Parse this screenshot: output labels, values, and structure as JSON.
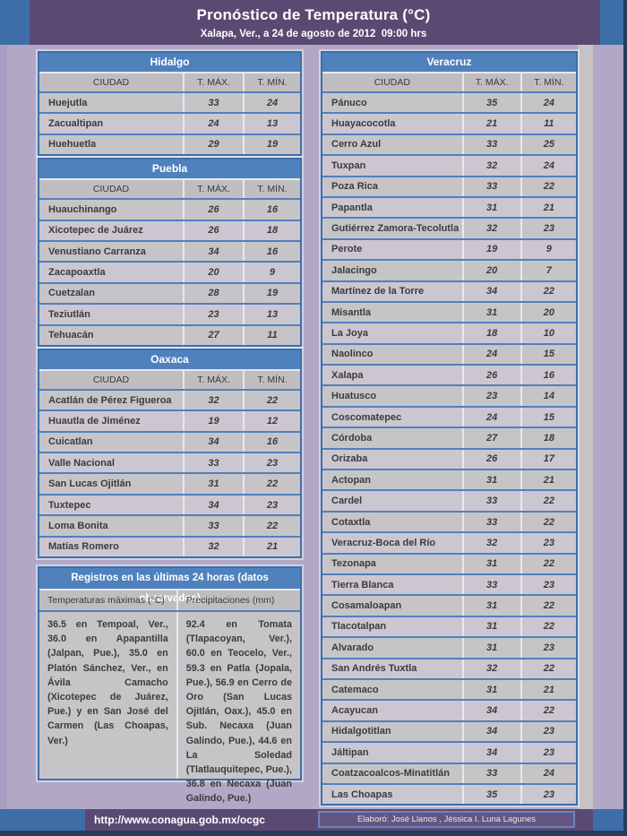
{
  "header": {
    "title": "Pronóstico de Temperatura (°C)",
    "subtitle": "Xalapa, Ver., a 24 de agosto de 2012  09:00 hrs"
  },
  "columns": {
    "city": "CIUDAD",
    "tmax": "T. MÁX.",
    "tmin": "T. MÍN."
  },
  "state_tables": {
    "left": [
      {
        "state": "Hidalgo",
        "rows": [
          [
            "Huejutla",
            33,
            24
          ],
          [
            "Zacualtipan",
            24,
            13
          ],
          [
            "Huehuetla",
            29,
            19
          ]
        ]
      },
      {
        "state": "Puebla",
        "rows": [
          [
            "Huauchinango",
            26,
            16
          ],
          [
            "Xicotepec de Juárez",
            26,
            18
          ],
          [
            "Venustiano Carranza",
            34,
            16
          ],
          [
            "Zacapoaxtla",
            20,
            9
          ],
          [
            "Cuetzalan",
            28,
            19
          ],
          [
            "Teziutlán",
            23,
            13
          ],
          [
            "Tehuacán",
            27,
            11
          ]
        ]
      },
      {
        "state": "Oaxaca",
        "rows": [
          [
            "Acatlán de Pérez Figueroa",
            32,
            22
          ],
          [
            "Huautla de Jiménez",
            19,
            12
          ],
          [
            "Cuicatlan",
            34,
            16
          ],
          [
            "Valle Nacional",
            33,
            23
          ],
          [
            "San Lucas Ojitlán",
            31,
            22
          ],
          [
            "Tuxtepec",
            34,
            23
          ],
          [
            "Loma Bonita",
            33,
            22
          ],
          [
            "Matías Romero",
            32,
            21
          ]
        ]
      }
    ],
    "right": [
      {
        "state": "Veracruz",
        "rows": [
          [
            "Pánuco",
            35,
            24
          ],
          [
            "Huayacocotla",
            21,
            11
          ],
          [
            "Cerro Azul",
            33,
            25
          ],
          [
            "Tuxpan",
            32,
            24
          ],
          [
            "Poza Rica",
            33,
            22
          ],
          [
            "Papantla",
            31,
            21
          ],
          [
            "Gutiérrez Zamora-Tecolutla",
            32,
            23
          ],
          [
            "Perote",
            19,
            9
          ],
          [
            "Jalacingo",
            20,
            7
          ],
          [
            "Martínez de la Torre",
            34,
            22
          ],
          [
            "Misantla",
            31,
            20
          ],
          [
            "La Joya",
            18,
            10
          ],
          [
            "Naolinco",
            24,
            15
          ],
          [
            "Xalapa",
            26,
            16
          ],
          [
            "Huatusco",
            23,
            14
          ],
          [
            "Coscomatepec",
            24,
            15
          ],
          [
            "Córdoba",
            27,
            18
          ],
          [
            "Orizaba",
            26,
            17
          ],
          [
            "Actopan",
            31,
            21
          ],
          [
            "Cardel",
            33,
            22
          ],
          [
            "Cotaxtla",
            33,
            22
          ],
          [
            "Veracruz-Boca del Río",
            32,
            23
          ],
          [
            "Tezonapa",
            31,
            22
          ],
          [
            "Tierra Blanca",
            33,
            23
          ],
          [
            "Cosamaloapan",
            31,
            22
          ],
          [
            "Tlacotalpan",
            31,
            22
          ],
          [
            "Alvarado",
            31,
            23
          ],
          [
            "San Andrés Tuxtla",
            32,
            22
          ],
          [
            "Catemaco",
            31,
            21
          ],
          [
            "Acayucan",
            34,
            22
          ],
          [
            "Hidalgotitlan",
            34,
            23
          ],
          [
            "Jáltipan",
            34,
            23
          ],
          [
            "Coatzacoalcos-Minatitlán",
            33,
            24
          ],
          [
            "Las Choapas",
            35,
            23
          ]
        ]
      }
    ]
  },
  "observations": {
    "title": "Registros en las últimas 24 horas (datos observados)",
    "col1_title": "Temperaturas máximas (°C)",
    "col2_title": "Precipitaciones (mm)",
    "col1_text": "36.5 en Tempoal, Ver., 36.0 en Apapantilla (Jalpan, Pue.), 35.0 en Platón Sánchez, Ver., en Ávila Camacho (Xicotepec de Juárez, Pue.) y en San José del Carmen (Las Choapas, Ver.)",
    "col2_text": "92.4 en Tomata (Tlapacoyan, Ver.), 60.0 en Teocelo, Ver., 59.3 en Patla (Jopala, Pue.), 56.9 en Cerro de Oro (San Lucas Ojitlán, Oax.), 45.0 en Sub. Necaxa (Juan Galindo, Pue.), 44.6 en La Soledad (Tlatlauquitepec, Pue.), 36.8 en Necaxa (Juan Galindo, Pue.)"
  },
  "footer": {
    "url": "http://www.conagua.gob.mx/ocgc",
    "credit": "Elaboró: José Llanos , Jéssica I. Luna Lagunes"
  },
  "colors": {
    "accent_blue": "#4f81bd",
    "header_purple": "#5a4a73",
    "corner_blue": "#3e6ea7",
    "page_lavender": "#b2a8c6",
    "row_gray": "#c7c4c8",
    "row_alt": "#ccc6d0",
    "edge_navy": "#2c3a5a"
  }
}
